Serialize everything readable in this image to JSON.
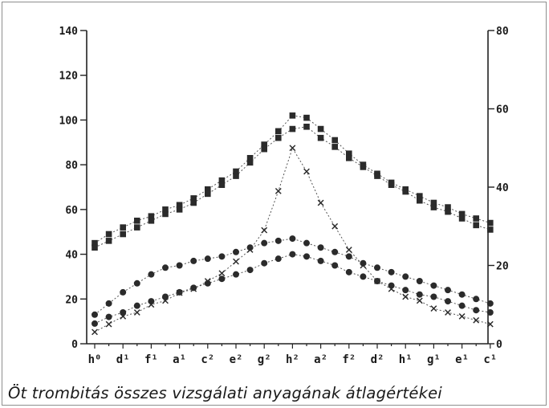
{
  "caption": "Öt trombitás összes vizsgálati anyagának átlagértékei",
  "chart_data": {
    "type": "scatter",
    "title": "",
    "categories": [
      "h⁰",
      "d¹",
      "f¹",
      "a¹",
      "c²",
      "e²",
      "g²",
      "h²",
      "a²",
      "f²",
      "d²",
      "h¹",
      "g¹",
      "e¹",
      "c¹"
    ],
    "x": [
      1,
      2,
      3,
      4,
      5,
      6,
      7,
      8,
      9,
      10,
      11,
      12,
      13,
      14,
      15,
      16,
      17,
      18,
      19,
      20,
      21,
      22,
      23,
      24,
      25,
      26,
      27,
      28,
      29
    ],
    "left_axis": {
      "ylim": [
        0,
        140
      ],
      "ticks": [
        "0",
        "20",
        "40",
        "60",
        "80",
        "100",
        "120",
        "140"
      ]
    },
    "right_axis": {
      "ylim": [
        0,
        80
      ],
      "ticks": [
        "0",
        "20",
        "40",
        "60",
        "80"
      ]
    },
    "grid": false,
    "legend": "none",
    "series": [
      {
        "axis": "left",
        "marker": "square",
        "values": [
          45,
          49,
          52,
          55,
          57,
          60,
          62,
          65,
          69,
          73,
          77,
          83,
          89,
          95,
          102,
          101,
          96,
          91,
          85,
          80,
          76,
          72,
          69,
          66,
          63,
          61,
          58,
          56,
          54
        ]
      },
      {
        "axis": "left",
        "marker": "square",
        "values": [
          43,
          46,
          49,
          52,
          55,
          58,
          60,
          63,
          67,
          71,
          75,
          81,
          87,
          92,
          96,
          97,
          92,
          88,
          83,
          79,
          75,
          71,
          68,
          64,
          61,
          59,
          56,
          53,
          51
        ]
      },
      {
        "axis": "left",
        "marker": "circle",
        "values": [
          13,
          18,
          23,
          27,
          31,
          34,
          35,
          37,
          38,
          39,
          41,
          43,
          45,
          46,
          47,
          45,
          43,
          41,
          39,
          36,
          34,
          32,
          30,
          28,
          26,
          24,
          22,
          20,
          18
        ]
      },
      {
        "axis": "left",
        "marker": "circle",
        "values": [
          9,
          12,
          14,
          17,
          19,
          21,
          23,
          25,
          27,
          29,
          31,
          33,
          36,
          38,
          40,
          39,
          37,
          35,
          32,
          30,
          28,
          26,
          24,
          22,
          21,
          19,
          17,
          15,
          14
        ]
      },
      {
        "axis": "right",
        "marker": "cross",
        "values": [
          3,
          5,
          7,
          8,
          10,
          11,
          13,
          14,
          16,
          18,
          21,
          24,
          29,
          39,
          50,
          44,
          36,
          30,
          24,
          20,
          16,
          14,
          12,
          11,
          9,
          8,
          7,
          6,
          5
        ]
      }
    ]
  }
}
